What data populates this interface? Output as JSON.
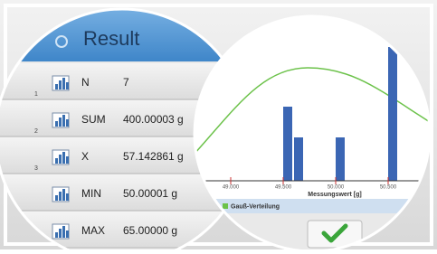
{
  "header": {
    "title": "Result"
  },
  "rows": [
    {
      "index": "1",
      "label": "N",
      "value": "7"
    },
    {
      "index": "2",
      "label": "SUM",
      "value": "400.00003 g"
    },
    {
      "index": "3",
      "label": "X",
      "value": "57.142861 g"
    },
    {
      "label": "MIN",
      "value": "50.00001 g"
    },
    {
      "label": "MAX",
      "value": "65.00000 g"
    }
  ],
  "chart": {
    "xticks": [
      "49.000",
      "49.500",
      "50.000",
      "50.500"
    ],
    "xlabel": "Messungswert [g]",
    "legend": "Gauß-Verteilung"
  }
}
